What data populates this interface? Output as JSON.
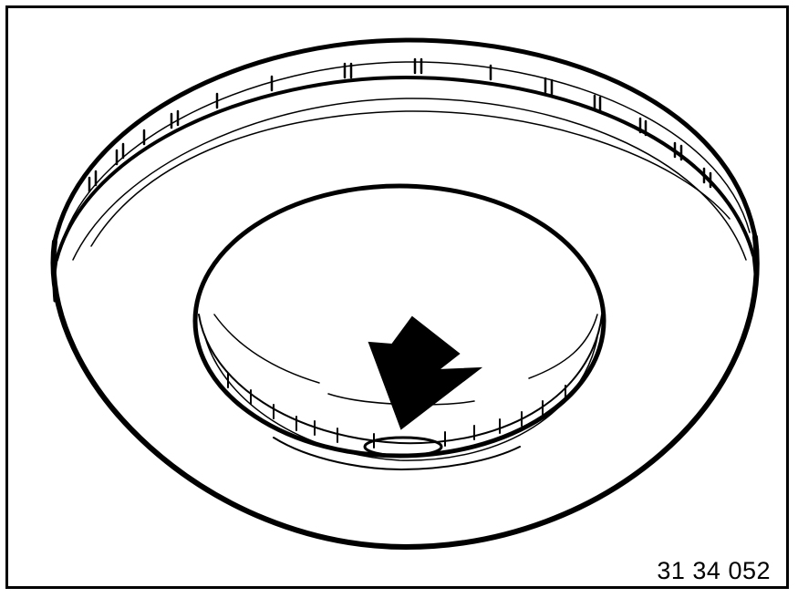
{
  "figure": {
    "reference_number": "31 34 052",
    "subject_icon": "brake-disc",
    "pointer_icon": "arrow-down-right",
    "line_color": "#000000",
    "background_color": "#ffffff"
  }
}
